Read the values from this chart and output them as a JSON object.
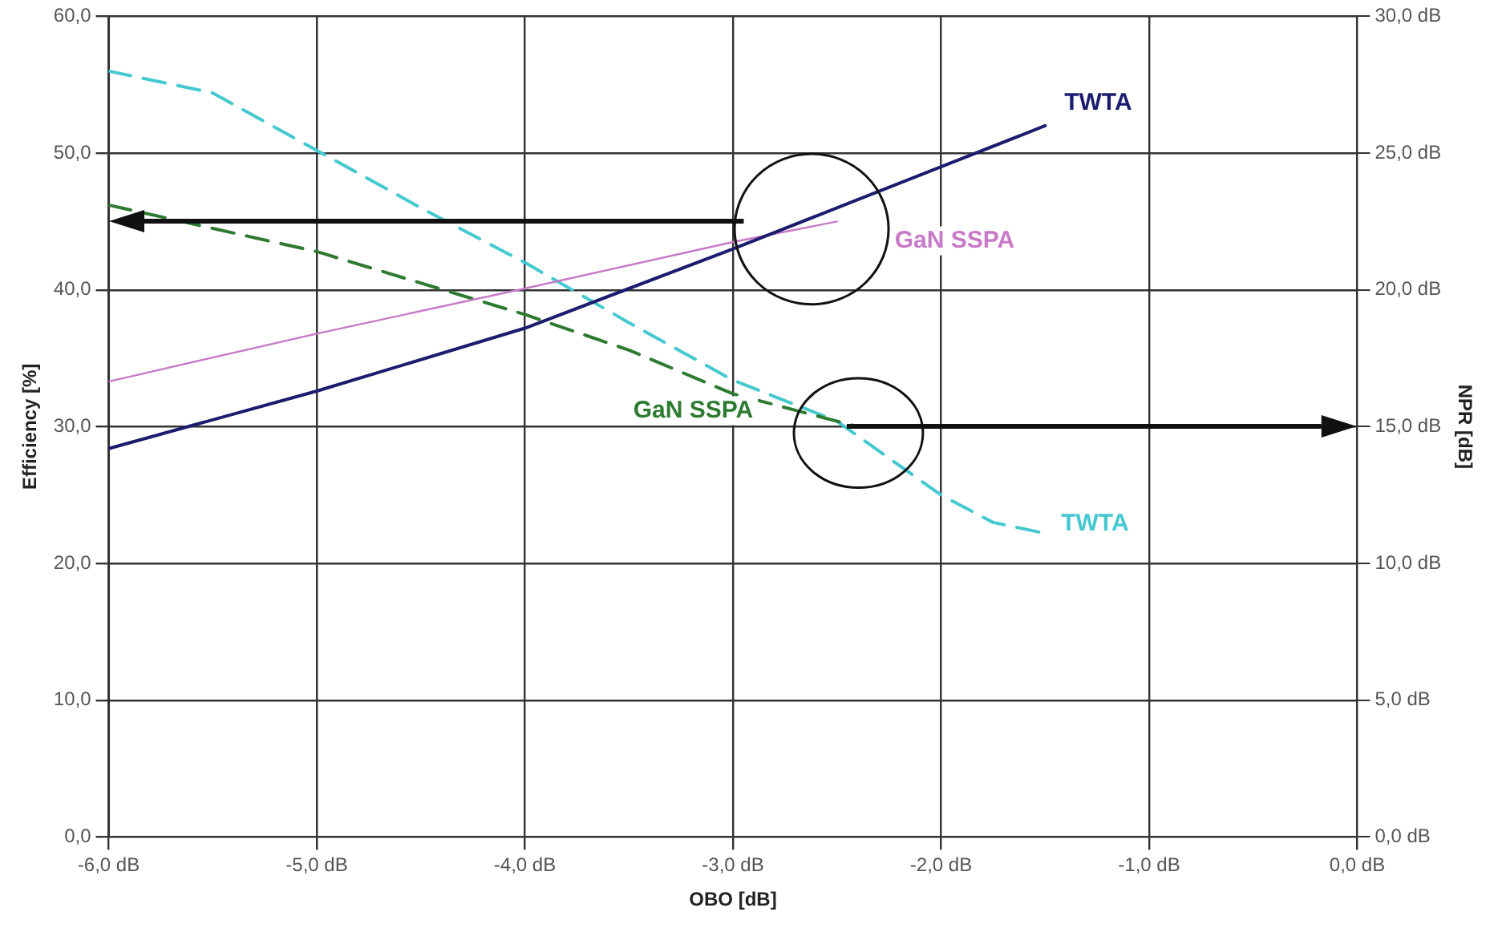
{
  "chart_data": {
    "type": "line",
    "xlabel": "OBO [dB]",
    "ylabel": "Efficiency [%]",
    "y2label": "NPR [dB]",
    "xlim": [
      -6,
      0
    ],
    "xticks": [
      {
        "value": -6,
        "label": "-6,0 dB"
      },
      {
        "value": -5,
        "label": "-5,0 dB"
      },
      {
        "value": -4,
        "label": "-4,0 dB"
      },
      {
        "value": -3,
        "label": "-3,0 dB"
      },
      {
        "value": -2,
        "label": "-2,0 dB"
      },
      {
        "value": -1,
        "label": "-1,0 dB"
      },
      {
        "value": 0,
        "label": "0,0 dB"
      }
    ],
    "ylim": [
      0,
      60
    ],
    "yticks": [
      {
        "value": 0,
        "label": "0,0"
      },
      {
        "value": 10,
        "label": "10,0"
      },
      {
        "value": 20,
        "label": "20,0"
      },
      {
        "value": 30,
        "label": "30,0"
      },
      {
        "value": 40,
        "label": "40,0"
      },
      {
        "value": 50,
        "label": "50,0"
      },
      {
        "value": 60,
        "label": "60,0"
      }
    ],
    "y2lim": [
      0,
      30
    ],
    "y2ticks": [
      {
        "value": 0,
        "label": "0,0 dB"
      },
      {
        "value": 5,
        "label": "5,0 dB"
      },
      {
        "value": 10,
        "label": "10,0 dB"
      },
      {
        "value": 15,
        "label": "15,0 dB"
      },
      {
        "value": 20,
        "label": "20,0 dB"
      },
      {
        "value": 25,
        "label": "25,0 dB"
      },
      {
        "value": 30,
        "label": "30,0 dB"
      }
    ],
    "grid": true,
    "legend": false,
    "marker": "none",
    "series": [
      {
        "name": "TWTA",
        "color": "#1c1c6e",
        "line_style": "solid",
        "x": [
          -6,
          -5,
          -4,
          -3,
          -2,
          -1.5
        ],
        "values": [
          28.4,
          32.6,
          37.2,
          43,
          49,
          52
        ]
      },
      {
        "name": "GaN SSPA",
        "color": "#c77ac7",
        "line_style": "solid",
        "x": [
          -6,
          -5,
          -4,
          -3,
          -2.5
        ],
        "values": [
          33.3,
          36.8,
          40.1,
          43.5,
          45
        ]
      },
      {
        "name": "GaN SSPA",
        "color": "#2e7a32",
        "line_style": "dashed",
        "axis": "y2",
        "x": [
          -6,
          -5,
          -4,
          -3.5,
          -3,
          -2.4
        ],
        "values": [
          23.1,
          21.4,
          19.1,
          17.8,
          16.2,
          15
        ]
      },
      {
        "name": "TWTA",
        "color": "#45c8d0",
        "line_style": "dashed",
        "axis": "y2",
        "x": [
          -6,
          -5.5,
          -5,
          -4.5,
          -4,
          -3.5,
          -3,
          -2.5,
          -2,
          -1.75,
          -1.5
        ],
        "values": [
          28,
          27.2,
          25.1,
          23,
          21,
          18.8,
          16.7,
          15.2,
          12.5,
          11.5,
          11.1
        ]
      }
    ]
  }
}
